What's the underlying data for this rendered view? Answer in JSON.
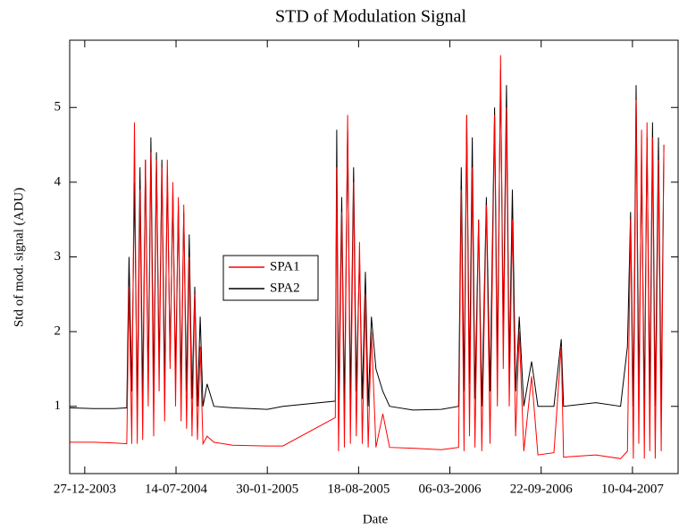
{
  "chart_data": {
    "type": "line",
    "title": "STD of Modulation Signal",
    "x_label": "Date",
    "y_label": "Std of mod. signal (ADU)",
    "xlim": [
      "2003-11-24",
      "2007-07-21"
    ],
    "ylim": [
      0.1,
      5.9
    ],
    "yticks": [
      1,
      2,
      3,
      4,
      5
    ],
    "xticks": [
      {
        "value": "2003-12-27",
        "label": "27-12-2003"
      },
      {
        "value": "2004-07-14",
        "label": "14-07-2004"
      },
      {
        "value": "2005-01-30",
        "label": "30-01-2005"
      },
      {
        "value": "2005-08-18",
        "label": "18-08-2005"
      },
      {
        "value": "2006-03-06",
        "label": "06-03-2006"
      },
      {
        "value": "2006-09-22",
        "label": "22-09-2006"
      },
      {
        "value": "2007-04-10",
        "label": "10-04-2007"
      }
    ],
    "x": [
      "2003-11-24",
      "2004-01-15",
      "2004-03-01",
      "2004-03-28",
      "2004-04-02",
      "2004-04-08",
      "2004-04-14",
      "2004-04-20",
      "2004-04-26",
      "2004-05-02",
      "2004-05-08",
      "2004-05-14",
      "2004-05-20",
      "2004-05-26",
      "2004-06-01",
      "2004-06-07",
      "2004-06-13",
      "2004-06-19",
      "2004-06-25",
      "2004-07-01",
      "2004-07-07",
      "2004-07-13",
      "2004-07-19",
      "2004-07-25",
      "2004-07-31",
      "2004-08-06",
      "2004-08-12",
      "2004-08-18",
      "2004-08-24",
      "2004-08-30",
      "2004-09-05",
      "2004-09-11",
      "2004-09-20",
      "2004-10-05",
      "2004-11-15",
      "2005-01-30",
      "2005-03-05",
      "2005-06-28",
      "2005-07-01",
      "2005-07-05",
      "2005-07-12",
      "2005-07-18",
      "2005-07-25",
      "2005-07-31",
      "2005-08-07",
      "2005-08-13",
      "2005-08-20",
      "2005-08-26",
      "2005-09-02",
      "2005-09-08",
      "2005-09-15",
      "2005-09-25",
      "2005-10-10",
      "2005-10-25",
      "2005-12-15",
      "2006-02-15",
      "2006-03-25",
      "2006-03-31",
      "2006-04-06",
      "2006-04-12",
      "2006-04-18",
      "2006-04-24",
      "2006-04-30",
      "2006-05-08",
      "2006-05-15",
      "2006-05-25",
      "2006-06-02",
      "2006-06-12",
      "2006-06-18",
      "2006-06-25",
      "2006-07-01",
      "2006-07-08",
      "2006-07-14",
      "2006-07-21",
      "2006-07-28",
      "2006-08-05",
      "2006-08-15",
      "2006-09-01",
      "2006-09-15",
      "2006-10-20",
      "2006-11-05",
      "2006-11-10",
      "2007-01-20",
      "2007-03-15",
      "2007-03-30",
      "2007-04-06",
      "2007-04-12",
      "2007-04-18",
      "2007-04-24",
      "2007-04-30",
      "2007-05-06",
      "2007-05-12",
      "2007-05-18",
      "2007-05-24",
      "2007-05-30",
      "2007-06-06",
      "2007-06-12",
      "2007-06-18"
    ],
    "series": [
      {
        "name": "SPA2",
        "color": "#000000",
        "values": [
          0.98,
          0.97,
          0.97,
          0.98,
          3.0,
          1.2,
          4.0,
          1.0,
          4.2,
          1.1,
          4.3,
          1.3,
          4.6,
          1.2,
          4.4,
          1.5,
          4.3,
          1.3,
          4.1,
          1.6,
          3.9,
          1.4,
          3.7,
          1.3,
          3.6,
          1.2,
          3.3,
          1.1,
          2.6,
          1.0,
          2.2,
          1.0,
          1.3,
          1.0,
          0.98,
          0.96,
          1.0,
          1.07,
          4.7,
          1.0,
          3.8,
          1.0,
          4.7,
          1.1,
          4.2,
          1.2,
          3.0,
          1.1,
          2.8,
          1.0,
          2.2,
          1.5,
          1.2,
          1.0,
          0.95,
          0.96,
          1.0,
          4.2,
          1.2,
          4.9,
          1.3,
          4.6,
          1.1,
          3.5,
          1.0,
          3.8,
          1.2,
          5.0,
          1.6,
          5.5,
          2.0,
          5.3,
          1.5,
          3.9,
          1.2,
          2.2,
          1.0,
          1.6,
          1.0,
          1.0,
          1.9,
          1.0,
          1.05,
          1.0,
          1.8,
          3.6,
          1.0,
          5.3,
          1.2,
          4.3,
          1.0,
          4.6,
          1.1,
          4.8,
          1.0,
          4.6,
          1.0,
          4.5
        ]
      },
      {
        "name": "SPA1",
        "color": "#ff0000",
        "values": [
          0.52,
          0.52,
          0.51,
          0.5,
          2.6,
          0.5,
          4.8,
          0.5,
          3.9,
          0.55,
          4.3,
          1.0,
          4.4,
          0.6,
          4.3,
          1.2,
          4.2,
          0.8,
          4.3,
          1.5,
          4.0,
          1.0,
          3.8,
          0.8,
          3.7,
          0.7,
          3.0,
          0.6,
          2.5,
          0.55,
          1.8,
          0.5,
          0.6,
          0.52,
          0.48,
          0.47,
          0.47,
          0.85,
          4.2,
          0.4,
          3.6,
          0.45,
          4.9,
          0.5,
          4.0,
          0.6,
          3.2,
          0.5,
          2.5,
          0.45,
          2.0,
          0.45,
          0.9,
          0.45,
          0.44,
          0.42,
          0.45,
          3.9,
          0.4,
          4.9,
          0.6,
          4.2,
          0.45,
          3.5,
          0.4,
          3.7,
          0.5,
          4.9,
          1.0,
          5.7,
          1.5,
          5.0,
          1.0,
          3.5,
          0.6,
          2.0,
          0.4,
          1.4,
          0.35,
          0.38,
          1.8,
          0.32,
          0.35,
          0.3,
          0.4,
          3.5,
          0.3,
          5.1,
          0.5,
          4.7,
          0.3,
          4.8,
          0.4,
          4.6,
          0.3,
          4.3,
          0.4,
          4.5
        ]
      }
    ],
    "legend_order": [
      "SPA1",
      "SPA2"
    ]
  }
}
